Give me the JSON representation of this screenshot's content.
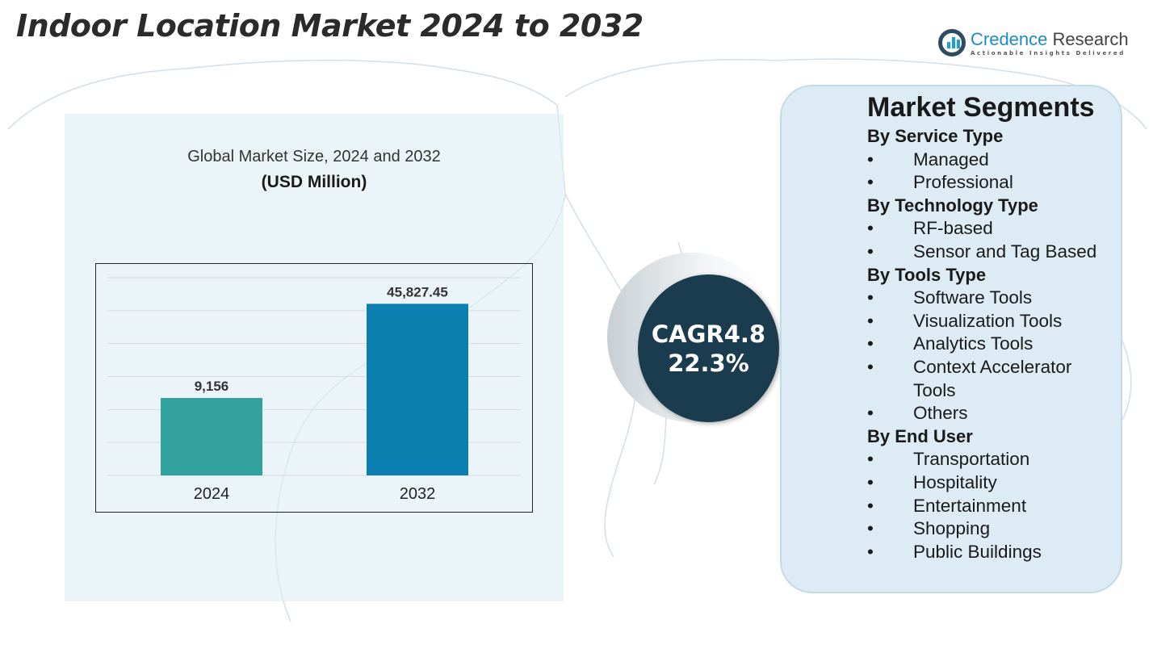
{
  "title": "Indoor Location Market 2024 to 2032",
  "logo": {
    "name_a": "Credence",
    "name_b": " Research",
    "tagline": "Actionable Insights Delivered"
  },
  "cagr": {
    "line1": "CAGR4.8",
    "line2": "22.3%"
  },
  "segments": {
    "heading": "Market Segments",
    "groups": [
      {
        "title": "By Service Type",
        "items": [
          "Managed",
          "Professional"
        ]
      },
      {
        "title": "By Technology Type",
        "items": [
          "RF-based",
          "Sensor and Tag Based"
        ]
      },
      {
        "title": "By Tools Type",
        "items": [
          "Software Tools",
          "Visualization Tools",
          "Analytics Tools",
          "Context Accelerator Tools",
          "Others"
        ]
      },
      {
        "title": "By End User",
        "items": [
          "Transportation",
          "Hospitality",
          "Entertainment",
          "Shopping",
          "Public Buildings"
        ]
      }
    ]
  },
  "chart_data": {
    "type": "bar",
    "title": "Global Market Size, 2024 and 2032",
    "subtitle": "(USD Million)",
    "categories": [
      "2024",
      "2032"
    ],
    "values": [
      9156,
      45827.45
    ],
    "labels": [
      "9,156",
      "45,827.45"
    ],
    "colors": [
      "#33a19e",
      "#0a7fb0"
    ],
    "ylim": [
      -21000,
      56000
    ],
    "grid": true,
    "xlabel": "",
    "ylabel": ""
  }
}
